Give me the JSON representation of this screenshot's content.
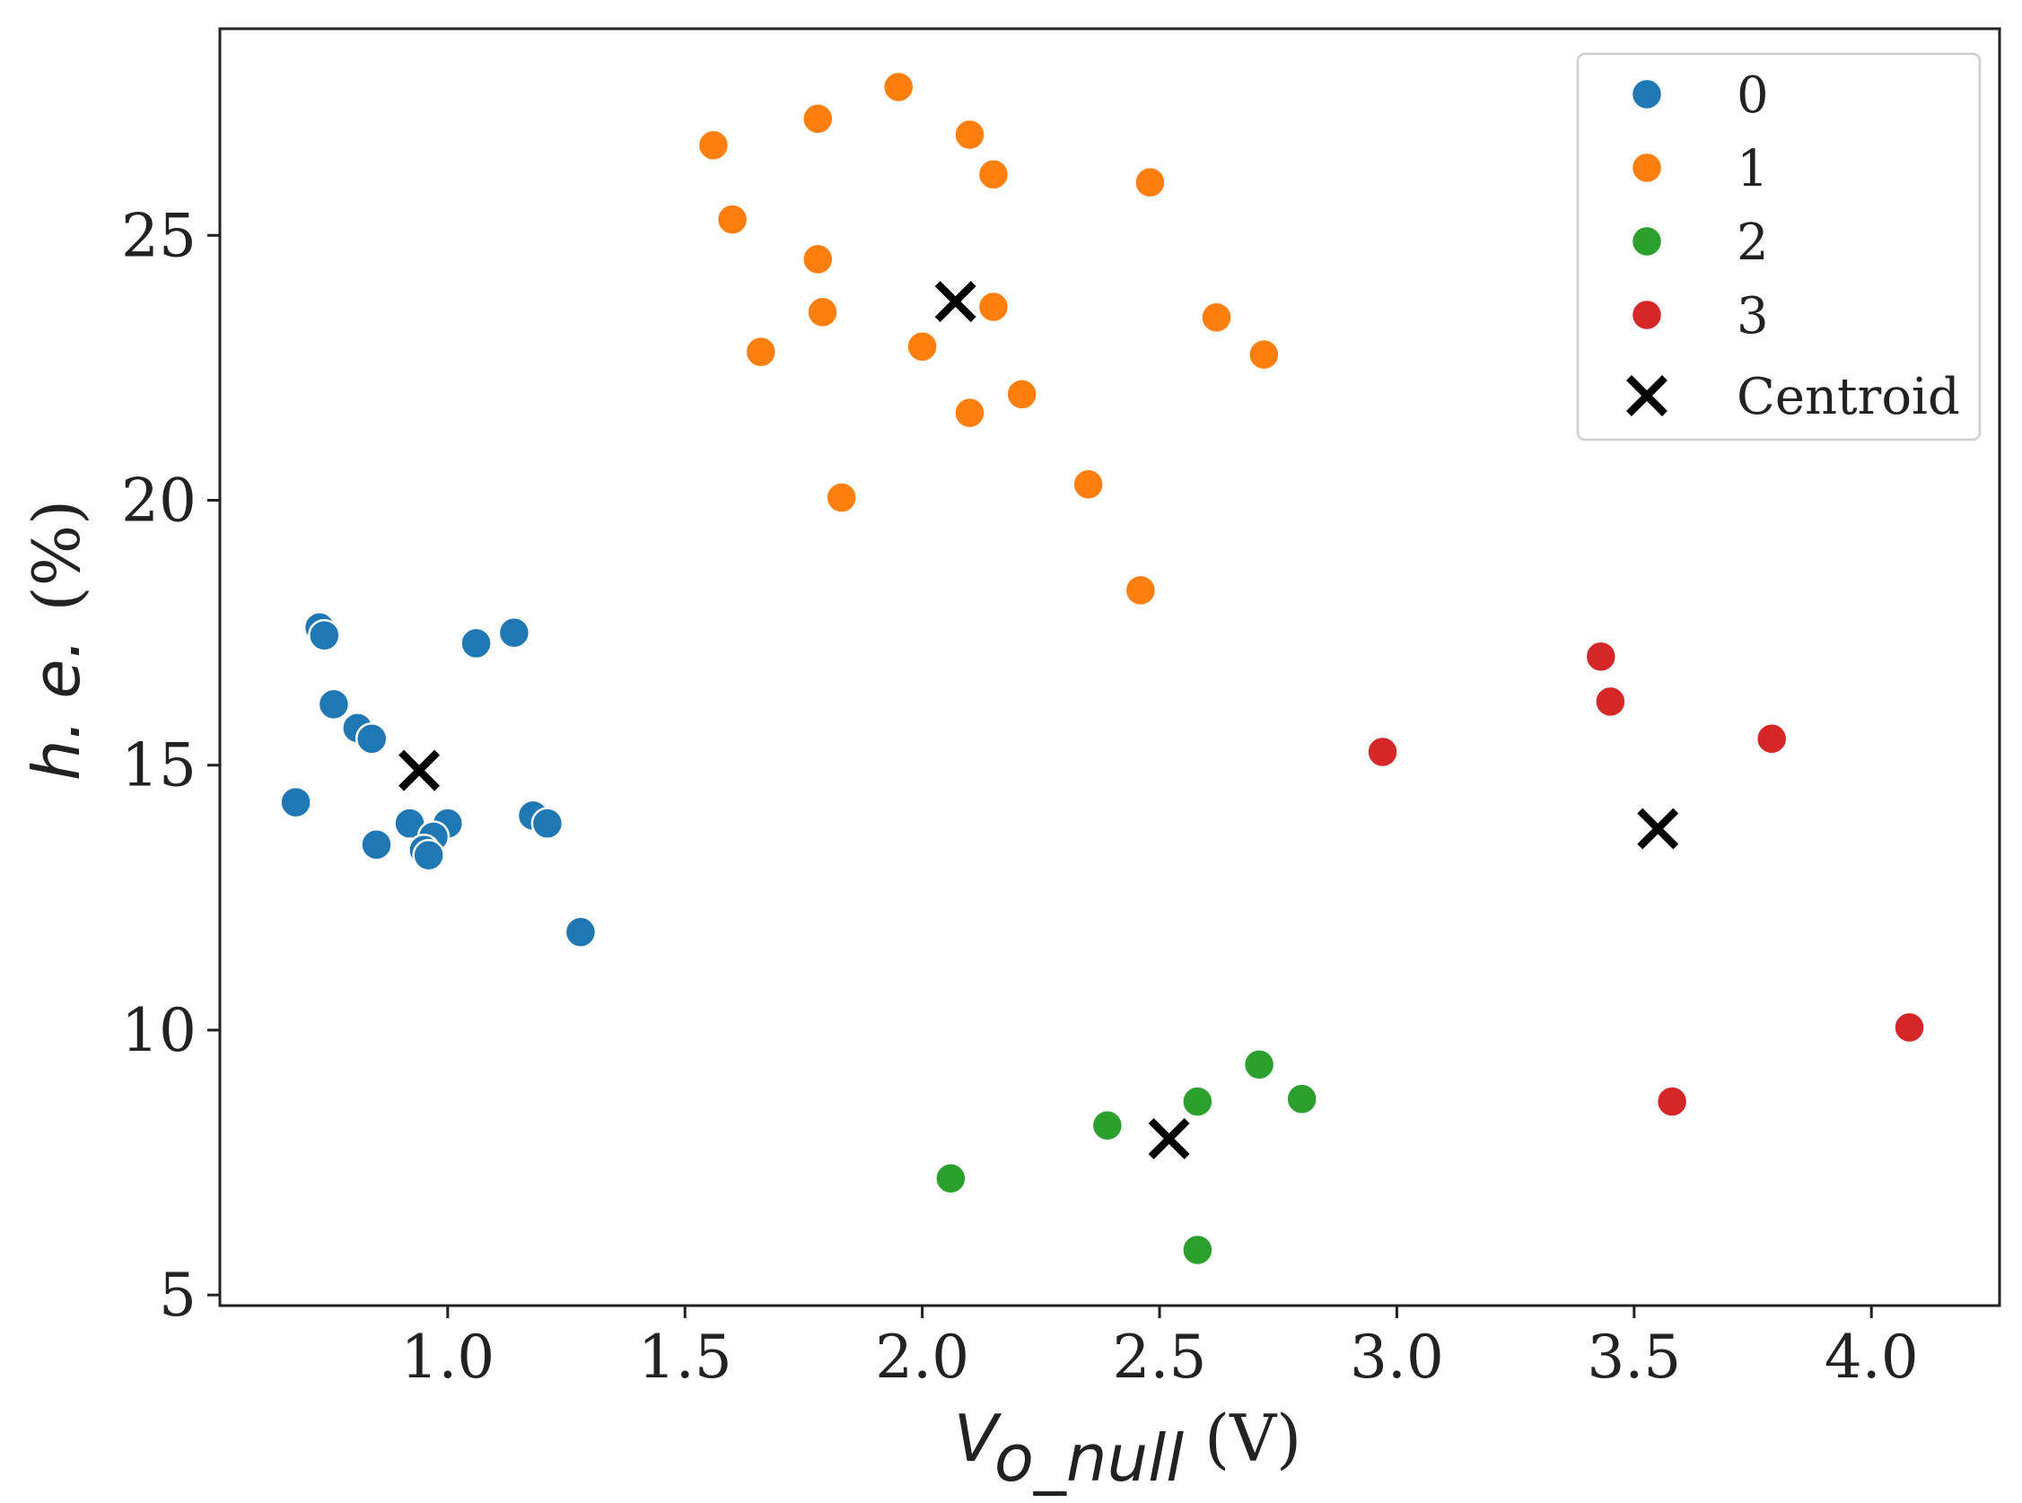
{
  "chart_data": {
    "type": "scatter",
    "title": "",
    "xlabel": {
      "main": "V",
      "sub": "o_null",
      "unit": "(V)"
    },
    "ylabel": {
      "main": "h. e.",
      "unit": "(%)"
    },
    "xlim": [
      0.52,
      4.27
    ],
    "ylim": [
      4.8,
      28.9
    ],
    "xticks": [
      1.0,
      1.5,
      2.0,
      2.5,
      3.0,
      3.5,
      4.0
    ],
    "xtick_labels": [
      "1.0",
      "1.5",
      "2.0",
      "2.5",
      "3.0",
      "3.5",
      "4.0"
    ],
    "yticks": [
      5,
      10,
      15,
      20,
      25
    ],
    "ytick_labels": [
      "5",
      "10",
      "15",
      "20",
      "25"
    ],
    "legend_position": "top-right",
    "series": [
      {
        "name": "0",
        "color": "#1f77b4",
        "points": [
          [
            0.73,
            17.6
          ],
          [
            0.74,
            17.45
          ],
          [
            1.06,
            17.3
          ],
          [
            1.14,
            17.5
          ],
          [
            0.76,
            16.15
          ],
          [
            0.81,
            15.7
          ],
          [
            0.84,
            15.5
          ],
          [
            0.68,
            14.3
          ],
          [
            0.92,
            13.9
          ],
          [
            1.0,
            13.9
          ],
          [
            0.97,
            13.65
          ],
          [
            0.95,
            13.4
          ],
          [
            0.96,
            13.3
          ],
          [
            0.85,
            13.5
          ],
          [
            1.18,
            14.05
          ],
          [
            1.21,
            13.9
          ],
          [
            1.28,
            11.85
          ]
        ]
      },
      {
        "name": "1",
        "color": "#ff7f0e",
        "points": [
          [
            1.95,
            27.8
          ],
          [
            1.78,
            27.2
          ],
          [
            2.1,
            26.9
          ],
          [
            1.56,
            26.7
          ],
          [
            2.15,
            26.15
          ],
          [
            2.48,
            26.0
          ],
          [
            1.6,
            25.3
          ],
          [
            1.78,
            24.55
          ],
          [
            1.79,
            23.55
          ],
          [
            2.15,
            23.65
          ],
          [
            2.62,
            23.45
          ],
          [
            1.66,
            22.8
          ],
          [
            2.0,
            22.9
          ],
          [
            2.72,
            22.75
          ],
          [
            2.21,
            22.0
          ],
          [
            2.1,
            21.65
          ],
          [
            1.83,
            20.05
          ],
          [
            2.35,
            20.3
          ],
          [
            2.46,
            18.3
          ]
        ]
      },
      {
        "name": "2",
        "color": "#2ca02c",
        "points": [
          [
            2.06,
            7.2
          ],
          [
            2.39,
            8.2
          ],
          [
            2.58,
            8.65
          ],
          [
            2.71,
            9.35
          ],
          [
            2.8,
            8.7
          ],
          [
            2.58,
            5.85
          ]
        ]
      },
      {
        "name": "3",
        "color": "#d62728",
        "points": [
          [
            2.97,
            15.25
          ],
          [
            3.43,
            17.05
          ],
          [
            3.45,
            16.2
          ],
          [
            3.79,
            15.5
          ],
          [
            3.58,
            8.65
          ],
          [
            4.08,
            10.05
          ]
        ]
      }
    ],
    "centroids": {
      "name": "Centroid",
      "color": "#000000",
      "points": [
        [
          0.94,
          14.9
        ],
        [
          2.07,
          23.75
        ],
        [
          2.52,
          7.95
        ],
        [
          3.55,
          13.8
        ]
      ]
    }
  }
}
